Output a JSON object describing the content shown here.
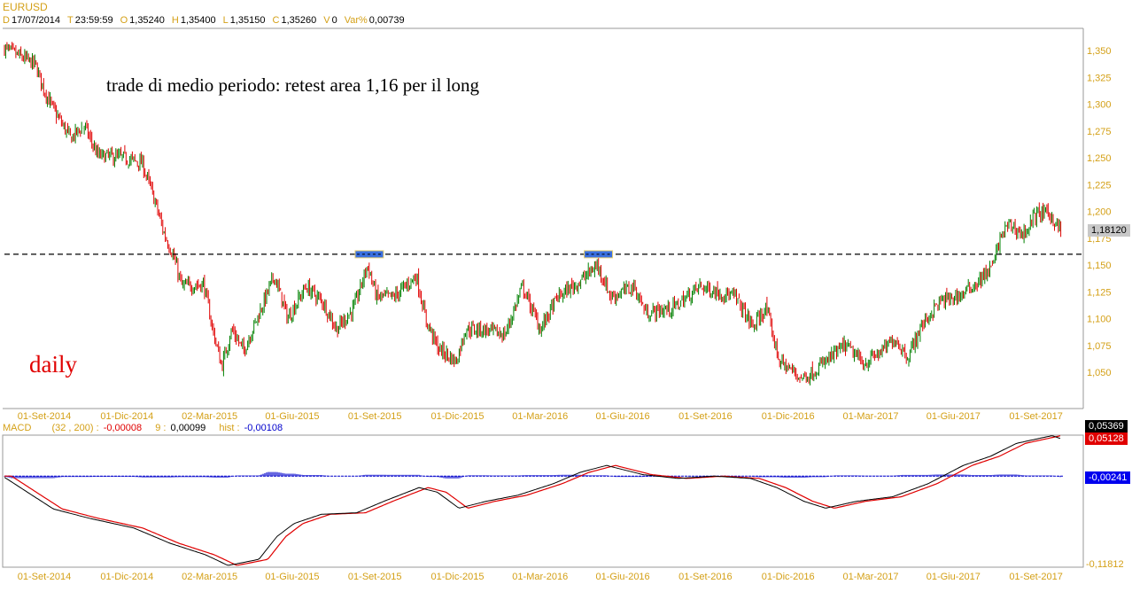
{
  "header": {
    "symbol": "EURUSD",
    "fields": [
      {
        "key": "D",
        "value": "17/07/2014"
      },
      {
        "key": "T",
        "value": "23:59:59"
      },
      {
        "key": "O",
        "value": "1,35240"
      },
      {
        "key": "H",
        "value": "1,35400"
      },
      {
        "key": "L",
        "value": "1,35150"
      },
      {
        "key": "C",
        "value": "1,35260"
      },
      {
        "key": "V",
        "value": "0"
      },
      {
        "key": "Var%",
        "value": "0,00739"
      }
    ]
  },
  "annotations": {
    "note": "trade di medio periodo: retest area 1,16 per il long",
    "timeframe": "daily",
    "level": 1.16,
    "retest_boxes": [
      "2015-08-24",
      "2016-05-03"
    ]
  },
  "colors": {
    "up": "#008000",
    "down": "#e00000",
    "axis_text": "#d4a017",
    "macd": "#000000",
    "signal": "#e00000",
    "hist": "#0000cc"
  },
  "chart_data": [
    {
      "type": "candlestick",
      "title": "EURUSD",
      "ylim": [
        1.035,
        1.365
      ],
      "y_ticks": [
        "1,350",
        "1,325",
        "1,300",
        "1,275",
        "1,250",
        "1,225",
        "1,200",
        "1,175",
        "1,150",
        "1,125",
        "1,100",
        "1,075",
        "1,050"
      ],
      "x_ticks": [
        "01-Set-2014",
        "01-Dic-2014",
        "02-Mar-2015",
        "01-Giu-2015",
        "01-Set-2015",
        "01-Dic-2015",
        "01-Mar-2016",
        "01-Giu-2016",
        "01-Set-2016",
        "01-Dic-2016",
        "01-Mar-2017",
        "01-Giu-2017",
        "01-Set-2017"
      ],
      "last_price": "1,18120",
      "close_path": [
        [
          "2014-07-17",
          1.353
        ],
        [
          "2014-08-22",
          1.337
        ],
        [
          "2014-09-01",
          1.313
        ],
        [
          "2014-09-11",
          1.295
        ],
        [
          "2014-09-30",
          1.268
        ],
        [
          "2014-10-15",
          1.28
        ],
        [
          "2014-10-30",
          1.252
        ],
        [
          "2014-11-28",
          1.25
        ],
        [
          "2014-12-18",
          1.245
        ],
        [
          "2015-01-01",
          1.21
        ],
        [
          "2015-01-11",
          1.18
        ],
        [
          "2015-01-21",
          1.16
        ],
        [
          "2015-01-31",
          1.13
        ],
        [
          "2015-02-24",
          1.132
        ],
        [
          "2015-03-06",
          1.09
        ],
        [
          "2015-03-16",
          1.055
        ],
        [
          "2015-03-27",
          1.09
        ],
        [
          "2015-04-09",
          1.07
        ],
        [
          "2015-04-24",
          1.1
        ],
        [
          "2015-05-13",
          1.14
        ],
        [
          "2015-05-28",
          1.1
        ],
        [
          "2015-06-17",
          1.13
        ],
        [
          "2015-07-06",
          1.115
        ],
        [
          "2015-07-21",
          1.09
        ],
        [
          "2015-08-09",
          1.11
        ],
        [
          "2015-08-24",
          1.15
        ],
        [
          "2015-09-03",
          1.12
        ],
        [
          "2015-09-22",
          1.12
        ],
        [
          "2015-10-17",
          1.14
        ],
        [
          "2015-10-27",
          1.1
        ],
        [
          "2015-11-10",
          1.072
        ],
        [
          "2015-11-30",
          1.06
        ],
        [
          "2015-12-10",
          1.09
        ],
        [
          "2015-12-29",
          1.09
        ],
        [
          "2016-01-23",
          1.085
        ],
        [
          "2016-02-11",
          1.13
        ],
        [
          "2016-03-02",
          1.09
        ],
        [
          "2016-03-21",
          1.12
        ],
        [
          "2016-04-15",
          1.135
        ],
        [
          "2016-05-04",
          1.15
        ],
        [
          "2016-05-19",
          1.12
        ],
        [
          "2016-06-13",
          1.13
        ],
        [
          "2016-06-27",
          1.105
        ],
        [
          "2016-07-27",
          1.11
        ],
        [
          "2016-08-25",
          1.13
        ],
        [
          "2016-10-03",
          1.12
        ],
        [
          "2016-10-23",
          1.092
        ],
        [
          "2016-11-06",
          1.11
        ],
        [
          "2016-11-21",
          1.06
        ],
        [
          "2016-12-15",
          1.045
        ],
        [
          "2016-12-25",
          1.048
        ],
        [
          "2017-01-14",
          1.062
        ],
        [
          "2017-02-02",
          1.075
        ],
        [
          "2017-02-22",
          1.058
        ],
        [
          "2017-03-18",
          1.072
        ],
        [
          "2017-03-28",
          1.082
        ],
        [
          "2017-04-12",
          1.064
        ],
        [
          "2017-04-26",
          1.092
        ],
        [
          "2017-05-16",
          1.115
        ],
        [
          "2017-06-10",
          1.122
        ],
        [
          "2017-06-29",
          1.135
        ],
        [
          "2017-07-14",
          1.148
        ],
        [
          "2017-07-24",
          1.178
        ],
        [
          "2017-08-02",
          1.188
        ],
        [
          "2017-08-17",
          1.178
        ],
        [
          "2017-09-01",
          1.198
        ],
        [
          "2017-09-15",
          1.198
        ],
        [
          "2017-09-28",
          1.181
        ]
      ]
    },
    {
      "type": "line",
      "title": "MACD",
      "params": "(32 , 200) :",
      "macd_value": "-0,00008",
      "signal_label": "9 :",
      "signal_value": "0,00099",
      "hist_label": "hist :",
      "hist_value": "-0,00108",
      "ylim": [
        -0.11812,
        0.05369
      ],
      "axis_labels": {
        "top": "0,05369",
        "macd_last": "0,05128",
        "hist_last": "-0,00241",
        "bottom": "-0,11812"
      },
      "x_ticks": [
        "01-Set-2014",
        "01-Dic-2014",
        "02-Mar-2015",
        "01-Giu-2015",
        "01-Set-2015",
        "01-Dic-2015",
        "01-Mar-2016",
        "01-Giu-2016",
        "01-Set-2016",
        "01-Dic-2016",
        "01-Mar-2017",
        "01-Giu-2017",
        "01-Set-2017"
      ],
      "macd_path": [
        [
          "2014-07-17",
          0.0
        ],
        [
          "2014-09-11",
          -0.043
        ],
        [
          "2014-10-20",
          -0.055
        ],
        [
          "2014-12-09",
          -0.068
        ],
        [
          "2015-01-18",
          -0.088
        ],
        [
          "2015-02-26",
          -0.103
        ],
        [
          "2015-03-23",
          -0.117
        ],
        [
          "2015-04-26",
          -0.109
        ],
        [
          "2015-05-16",
          -0.079
        ],
        [
          "2015-06-04",
          -0.062
        ],
        [
          "2015-07-04",
          -0.05
        ],
        [
          "2015-08-12",
          -0.048
        ],
        [
          "2015-09-11",
          -0.033
        ],
        [
          "2015-10-20",
          -0.015
        ],
        [
          "2015-11-09",
          -0.021
        ],
        [
          "2015-12-03",
          -0.042
        ],
        [
          "2016-01-02",
          -0.033
        ],
        [
          "2016-02-06",
          -0.025
        ],
        [
          "2016-03-16",
          -0.01
        ],
        [
          "2016-04-15",
          0.005
        ],
        [
          "2016-05-14",
          0.014
        ],
        [
          "2016-06-23",
          0.002
        ],
        [
          "2016-08-01",
          -0.003
        ],
        [
          "2016-09-10",
          0.0
        ],
        [
          "2016-10-20",
          -0.003
        ],
        [
          "2016-11-18",
          -0.015
        ],
        [
          "2016-12-18",
          -0.033
        ],
        [
          "2017-01-11",
          -0.042
        ],
        [
          "2017-02-14",
          -0.033
        ],
        [
          "2017-03-26",
          -0.027
        ],
        [
          "2017-05-04",
          -0.01
        ],
        [
          "2017-06-12",
          0.014
        ],
        [
          "2017-07-12",
          0.026
        ],
        [
          "2017-08-10",
          0.043
        ],
        [
          "2017-09-18",
          0.053
        ],
        [
          "2017-09-28",
          0.049
        ]
      ]
    }
  ]
}
